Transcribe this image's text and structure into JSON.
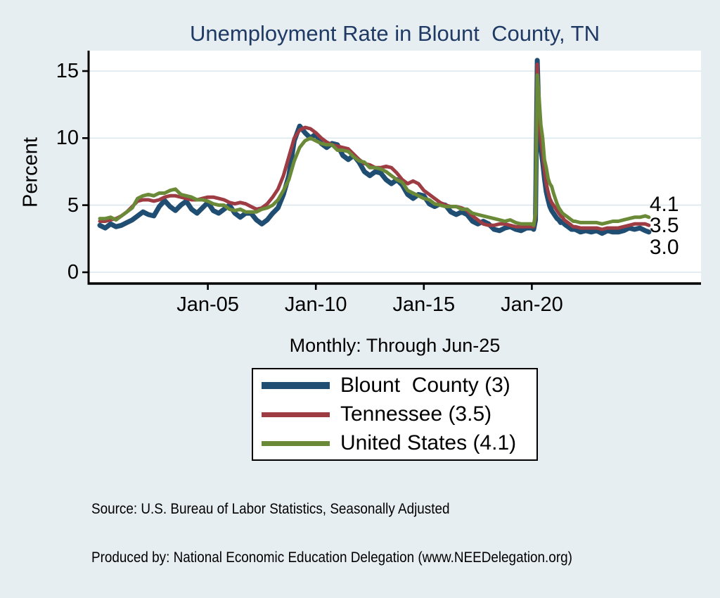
{
  "colors": {
    "background": "#e7eef1",
    "plot_background": "#ffffff",
    "gridline": "#dce7ed",
    "axis": "#000000",
    "title": "#1f3a64",
    "blount_navy": "#1f4e72",
    "tennessee_red": "#9e3c44",
    "us_green": "#6b8a38"
  },
  "footer": {
    "source_line1": "Source: U.S. Bureau of Labor Statistics, Seasonally Adjusted",
    "source_line2": "Produced by: National Economic Education Delegation (www.NEEDelegation.org)"
  },
  "chart_data": {
    "type": "line",
    "title": "Unemployment Rate in Blount  County, TN",
    "subtitle": "Monthly: Through Jun-25",
    "ylabel": "Percent",
    "x_units": "decimal_year",
    "grid": "horizontal",
    "legend_position": "bottom",
    "xlim": [
      1999.48,
      2027.83
    ],
    "ylim": [
      -0.84,
      16.52
    ],
    "x_ticks": [
      {
        "value": 2005,
        "label": "Jan-05"
      },
      {
        "value": 2010,
        "label": "Jan-10"
      },
      {
        "value": 2015,
        "label": "Jan-15"
      },
      {
        "value": 2020,
        "label": "Jan-20"
      }
    ],
    "y_ticks": [
      {
        "value": 0,
        "label": "0"
      },
      {
        "value": 5,
        "label": "5"
      },
      {
        "value": 10,
        "label": "10"
      },
      {
        "value": 15,
        "label": "15"
      }
    ],
    "end_labels": [
      {
        "text": "4.1",
        "x": 2025.45,
        "y": 5.05
      },
      {
        "text": "3.5",
        "x": 2025.45,
        "y": 3.45
      },
      {
        "text": "3.0",
        "x": 2025.45,
        "y": 1.85
      }
    ],
    "x": [
      2000,
      2000.25,
      2000.5,
      2000.75,
      2001,
      2001.25,
      2001.5,
      2001.75,
      2002,
      2002.25,
      2002.5,
      2002.75,
      2003,
      2003.25,
      2003.5,
      2003.75,
      2004,
      2004.25,
      2004.5,
      2004.75,
      2005,
      2005.25,
      2005.5,
      2005.75,
      2006,
      2006.25,
      2006.5,
      2006.75,
      2007,
      2007.25,
      2007.5,
      2007.75,
      2008,
      2008.25,
      2008.5,
      2008.75,
      2009,
      2009.25,
      2009.5,
      2009.75,
      2010,
      2010.25,
      2010.5,
      2010.75,
      2011,
      2011.25,
      2011.5,
      2011.75,
      2012,
      2012.25,
      2012.5,
      2012.75,
      2013,
      2013.25,
      2013.5,
      2013.75,
      2014,
      2014.25,
      2014.5,
      2014.75,
      2015,
      2015.25,
      2015.5,
      2015.75,
      2016,
      2016.25,
      2016.5,
      2016.75,
      2017,
      2017.25,
      2017.5,
      2017.75,
      2018,
      2018.25,
      2018.5,
      2018.75,
      2019,
      2019.25,
      2019.5,
      2019.75,
      2020,
      2020.083,
      2020.167,
      2020.25,
      2020.333,
      2020.417,
      2020.5,
      2020.583,
      2020.667,
      2020.75,
      2020.833,
      2020.917,
      2021,
      2021.083,
      2021.167,
      2021.25,
      2021.333,
      2021.417,
      2021.5,
      2021.583,
      2021.667,
      2021.75,
      2021.833,
      2021.917,
      2022,
      2022.25,
      2022.5,
      2022.75,
      2023,
      2023.25,
      2023.5,
      2023.75,
      2024,
      2024.25,
      2024.5,
      2024.75,
      2025,
      2025.25,
      2025.417
    ],
    "series": [
      {
        "name": "Blount  County (3)",
        "latest_value": 3.0,
        "color": "#1f4e72",
        "width": 7,
        "values": [
          3.5,
          3.3,
          3.6,
          3.4,
          3.5,
          3.7,
          3.9,
          4.2,
          4.5,
          4.3,
          4.2,
          4.9,
          5.35,
          4.9,
          4.6,
          5.0,
          5.3,
          4.7,
          4.4,
          4.8,
          5.2,
          4.6,
          4.4,
          4.7,
          5.0,
          4.4,
          4.1,
          4.4,
          4.4,
          3.9,
          3.6,
          3.9,
          4.4,
          4.8,
          5.8,
          7.2,
          9.8,
          10.9,
          10.4,
          10.0,
          10.3,
          9.6,
          9.3,
          9.6,
          9.5,
          8.7,
          8.4,
          8.7,
          8.2,
          7.5,
          7.2,
          7.5,
          7.4,
          6.9,
          6.6,
          6.9,
          6.5,
          5.8,
          5.5,
          5.8,
          5.7,
          5.1,
          4.9,
          5.1,
          5.0,
          4.5,
          4.3,
          4.5,
          4.3,
          3.8,
          3.6,
          3.8,
          3.6,
          3.2,
          3.1,
          3.3,
          3.4,
          3.2,
          3.1,
          3.3,
          3.3,
          3.2,
          3.9,
          15.8,
          11.0,
          9.2,
          8.2,
          7.0,
          6.0,
          5.4,
          4.9,
          4.6,
          4.4,
          4.2,
          4.0,
          3.9,
          3.7,
          3.8,
          3.6,
          3.5,
          3.4,
          3.3,
          3.2,
          3.2,
          3.2,
          3.0,
          3.1,
          3.0,
          3.1,
          2.9,
          3.1,
          3.0,
          3.0,
          3.1,
          3.3,
          3.2,
          3.3,
          3.1,
          3.0
        ]
      },
      {
        "name": "Tennessee (3.5)",
        "latest_value": 3.5,
        "color": "#9e3c44",
        "width": 5,
        "values": [
          3.8,
          3.8,
          3.9,
          4.0,
          4.2,
          4.5,
          4.9,
          5.3,
          5.4,
          5.4,
          5.3,
          5.4,
          5.6,
          5.7,
          5.7,
          5.6,
          5.5,
          5.4,
          5.4,
          5.5,
          5.6,
          5.6,
          5.5,
          5.4,
          5.2,
          5.1,
          5.2,
          5.1,
          4.9,
          4.7,
          4.8,
          5.1,
          5.6,
          6.2,
          7.2,
          8.6,
          10.0,
          10.6,
          10.8,
          10.7,
          10.4,
          10.0,
          9.7,
          9.5,
          9.4,
          9.3,
          9.2,
          8.8,
          8.4,
          8.1,
          8.0,
          7.8,
          7.8,
          7.9,
          7.8,
          7.4,
          6.9,
          6.6,
          6.8,
          6.6,
          6.1,
          5.8,
          5.5,
          5.2,
          5.0,
          4.9,
          4.9,
          4.8,
          4.6,
          4.2,
          3.9,
          3.6,
          3.5,
          3.5,
          3.6,
          3.6,
          3.5,
          3.4,
          3.4,
          3.4,
          3.4,
          3.4,
          4.2,
          15.5,
          11.5,
          9.8,
          8.8,
          7.6,
          6.6,
          6.0,
          5.5,
          5.2,
          5.0,
          4.8,
          4.6,
          4.4,
          4.2,
          4.1,
          3.9,
          3.8,
          3.7,
          3.6,
          3.5,
          3.4,
          3.4,
          3.3,
          3.3,
          3.3,
          3.3,
          3.2,
          3.3,
          3.3,
          3.3,
          3.4,
          3.5,
          3.6,
          3.6,
          3.6,
          3.5
        ]
      },
      {
        "name": "United States (4.1)",
        "latest_value": 4.1,
        "color": "#6b8a38",
        "width": 5,
        "values": [
          4.0,
          4.0,
          4.1,
          3.9,
          4.2,
          4.5,
          4.8,
          5.5,
          5.7,
          5.8,
          5.7,
          5.9,
          5.9,
          6.1,
          6.2,
          5.8,
          5.7,
          5.6,
          5.4,
          5.4,
          5.3,
          5.1,
          5.0,
          5.0,
          4.7,
          4.6,
          4.7,
          4.5,
          4.5,
          4.5,
          4.7,
          4.8,
          5.0,
          5.4,
          6.1,
          6.9,
          8.3,
          9.3,
          9.8,
          10.0,
          9.8,
          9.6,
          9.5,
          9.5,
          9.1,
          9.1,
          9.0,
          8.6,
          8.3,
          8.2,
          7.8,
          7.8,
          7.7,
          7.5,
          7.2,
          6.9,
          6.7,
          6.1,
          5.9,
          5.7,
          5.5,
          5.4,
          5.1,
          5.0,
          4.9,
          4.9,
          4.9,
          4.7,
          4.7,
          4.4,
          4.3,
          4.2,
          4.1,
          4.0,
          3.9,
          3.8,
          3.9,
          3.7,
          3.6,
          3.6,
          3.6,
          3.5,
          4.4,
          14.7,
          13.0,
          11.0,
          10.0,
          8.4,
          7.8,
          7.0,
          6.6,
          6.4,
          5.9,
          5.5,
          5.1,
          4.8,
          4.6,
          4.4,
          4.3,
          4.2,
          4.1,
          4.0,
          3.9,
          3.8,
          3.8,
          3.7,
          3.7,
          3.7,
          3.7,
          3.6,
          3.7,
          3.8,
          3.8,
          3.9,
          4.0,
          4.1,
          4.1,
          4.2,
          4.1
        ]
      }
    ]
  }
}
